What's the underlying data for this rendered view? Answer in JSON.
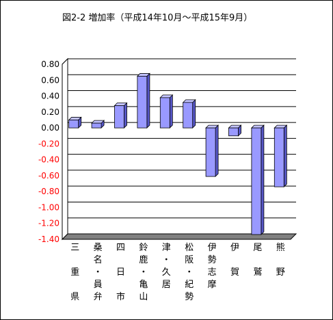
{
  "chart_data": {
    "type": "bar",
    "title": "図2-2  増加率（平成14年10月～平成15年9月）",
    "xlabel": "",
    "ylabel": "",
    "ylim": [
      -1.4,
      0.8
    ],
    "ytick_step": 0.2,
    "ytick_labels": [
      "0.80",
      "0.60",
      "0.40",
      "0.20",
      "0.00",
      "-0.20",
      "-0.40",
      "-0.60",
      "-0.80",
      "-1.00",
      "-1.20",
      "-1.40"
    ],
    "grid": true,
    "legend": "none",
    "categories": [
      [
        "三",
        "",
        "重",
        "",
        "県"
      ],
      [
        "桑",
        "名",
        "・",
        "員",
        "弁"
      ],
      [
        "四",
        "",
        "日",
        "",
        "市"
      ],
      [
        "鈴",
        "鹿",
        "・",
        "亀",
        "山"
      ],
      [
        "津",
        "・",
        "久",
        "居",
        ""
      ],
      [
        "松",
        "阪",
        "・",
        "紀",
        "勢"
      ],
      [
        "伊",
        "勢",
        "志",
        "摩",
        ""
      ],
      [
        "伊",
        "",
        "賀",
        "",
        ""
      ],
      [
        "尾",
        "",
        "鷲",
        "",
        ""
      ],
      [
        "熊",
        "",
        "野",
        "",
        ""
      ]
    ],
    "values": [
      0.1,
      0.06,
      0.28,
      0.65,
      0.38,
      0.32,
      -0.61,
      -0.1,
      -1.34,
      -0.74
    ],
    "colors": {
      "bar_front": "#9999ff",
      "bar_side": "#5757c8",
      "bar_top": "#c3c3ff",
      "positive_tick": "#000000",
      "negative_tick": "#ff0000",
      "floor": "#808080"
    }
  }
}
